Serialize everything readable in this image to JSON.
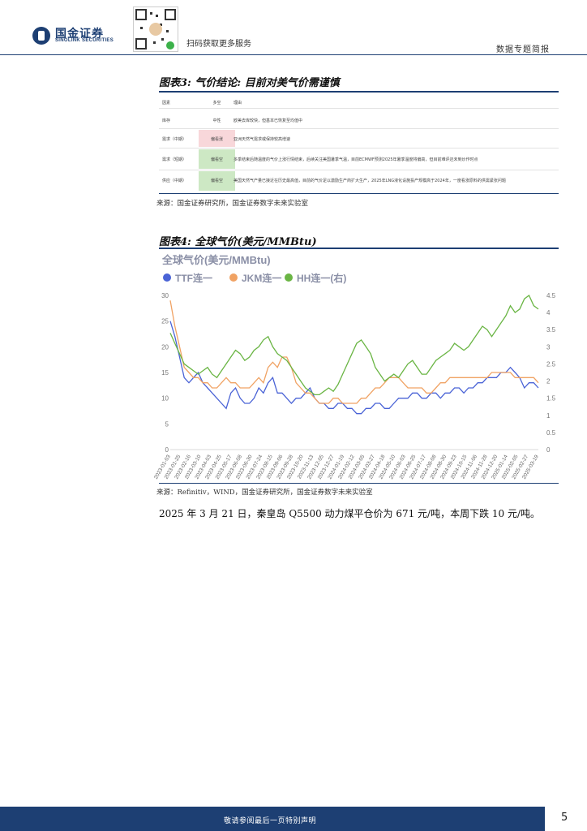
{
  "header": {
    "logo_cn": "国金证券",
    "logo_en": "SINOLINK SECURITIES",
    "qr_caption": "扫码获取更多服务",
    "report_type": "数据专题简报"
  },
  "figure3": {
    "title": "图表3:  气价结论:  目前对美气价需谨慎",
    "headers": [
      "因素",
      "多空",
      "理由"
    ],
    "rows": [
      {
        "factor": "库存",
        "stance": "中性",
        "reason": "欧美去库较快，但基本已恢复至均值中",
        "tone": "none"
      },
      {
        "factor": "需求（中期）",
        "stance": "偏看涨",
        "reason": "亚洲天然气需求或保持较高增速",
        "tone": "red"
      },
      {
        "factor": "需求（短期）",
        "stance": "偏看空",
        "reason": "多季结束后随温度的气价上涨行情结束，后续关注美国暑季气温，目前ECMWF预测2025年暑季温度将偏高，但目前难评还未到炒作时点",
        "tone": "green"
      },
      {
        "factor": "供应（中期）",
        "stance": "偏看空",
        "reason": "美国天然气产量已接近在历史最高值，目前的气价足以激励生产商扩大生产，2025年LNG液化设施投产规模高于2024年，一度看涨原料的供需紧张问题",
        "tone": "green"
      }
    ],
    "source": "来源：国金证券研究所，国金证券数字未来实验室"
  },
  "figure4": {
    "title": "图表4:  全球气价(美元/MMBtu)",
    "source": "来源：Refinitiv，WIND，国金证券研究所，国金证券数字未来实验室"
  },
  "chart_data": {
    "type": "line",
    "title": "全球气价(美元/MMBtu)",
    "legend_position": "top-left",
    "series": [
      {
        "name": "TTF连一",
        "axis": "left",
        "color": "#4a63d6",
        "values": [
          25,
          22,
          18,
          14,
          13,
          14,
          15,
          13,
          12,
          11,
          10,
          9,
          8,
          11,
          12,
          10,
          9,
          9,
          10,
          12,
          11,
          13,
          14,
          11,
          11,
          10,
          9,
          10,
          10,
          11,
          12,
          10,
          9,
          9,
          8,
          8,
          9,
          9,
          8,
          8,
          7,
          7,
          8,
          8,
          9,
          9,
          8,
          8,
          9,
          10,
          10,
          10,
          11,
          11,
          10,
          10,
          11,
          11,
          10,
          11,
          11,
          12,
          12,
          11,
          12,
          12,
          13,
          13,
          14,
          14,
          14,
          15,
          15,
          16,
          15,
          14,
          12,
          13,
          13,
          12
        ]
      },
      {
        "name": "JKM连一",
        "axis": "left",
        "color": "#f0a263",
        "values": [
          29,
          24,
          20,
          16,
          15,
          14,
          14,
          13,
          13,
          12,
          12,
          13,
          14,
          13,
          13,
          12,
          12,
          12,
          13,
          14,
          13,
          16,
          17,
          16,
          18,
          18,
          16,
          13,
          12,
          11,
          11,
          10,
          9,
          9,
          9,
          10,
          10,
          9,
          9,
          9,
          9,
          10,
          10,
          11,
          12,
          12,
          13,
          14,
          14,
          14,
          13,
          12,
          12,
          12,
          12,
          11,
          11,
          12,
          13,
          13,
          14,
          14,
          14,
          14,
          14,
          14,
          14,
          14,
          14,
          15,
          15,
          15,
          15,
          15,
          14,
          14,
          14,
          14,
          14,
          13
        ]
      },
      {
        "name": "HH连一",
        "axis": "right",
        "color": "#6ab544",
        "values": [
          3.4,
          3.1,
          2.8,
          2.5,
          2.4,
          2.3,
          2.2,
          2.3,
          2.4,
          2.2,
          2.1,
          2.3,
          2.5,
          2.7,
          2.9,
          2.8,
          2.6,
          2.7,
          2.9,
          3.0,
          3.2,
          3.3,
          3.0,
          2.8,
          2.7,
          2.6,
          2.4,
          2.2,
          2.0,
          1.8,
          1.7,
          1.6,
          1.6,
          1.7,
          1.8,
          1.7,
          1.9,
          2.2,
          2.5,
          2.8,
          3.1,
          3.2,
          3.0,
          2.8,
          2.4,
          2.2,
          2.0,
          2.1,
          2.2,
          2.1,
          2.3,
          2.5,
          2.6,
          2.4,
          2.2,
          2.2,
          2.4,
          2.6,
          2.7,
          2.8,
          2.9,
          3.1,
          3.0,
          2.9,
          3.0,
          3.2,
          3.4,
          3.6,
          3.5,
          3.3,
          3.5,
          3.7,
          3.9,
          4.2,
          4.0,
          4.1,
          4.4,
          4.5,
          4.2,
          4.1
        ]
      }
    ],
    "left_ticks": [
      "0",
      "5",
      "10",
      "15",
      "20",
      "25",
      "30"
    ],
    "right_ticks": [
      "0",
      "0.5",
      "1",
      "1.5",
      "2",
      "2.5",
      "3",
      "3.5",
      "4",
      "4.5"
    ],
    "ylim_left": [
      0,
      30
    ],
    "ylim_right": [
      0,
      4.5
    ],
    "x_tick_labels": [
      "2023-01-03",
      "2023-01-25",
      "2023-02-16",
      "2023-03-10",
      "2023-04-03",
      "2023-04-25",
      "2023-05-17",
      "2023-06-08",
      "2023-06-30",
      "2023-07-24",
      "2023-08-15",
      "2023-09-06",
      "2023-09-28",
      "2023-10-20",
      "2023-11-13",
      "2023-12-05",
      "2023-12-27",
      "2024-01-19",
      "2024-02-12",
      "2024-03-05",
      "2024-03-27",
      "2024-04-18",
      "2024-05-10",
      "2024-06-03",
      "2024-06-25",
      "2024-07-17",
      "2024-08-08",
      "2024-08-30",
      "2024-09-23",
      "2024-10-15",
      "2024-11-06",
      "2024-11-28",
      "2024-12-20",
      "2025-01-14",
      "2025-02-05",
      "2025-02-27",
      "2025-03-19"
    ]
  },
  "body": {
    "paragraph": "2025 年 3 月 21 日，秦皇岛 Q5500 动力煤平仓价为 671 元/吨，本周下跌 10 元/吨。"
  },
  "footer": {
    "disclaimer": "敬请参阅最后一页特别声明",
    "page": "5"
  }
}
